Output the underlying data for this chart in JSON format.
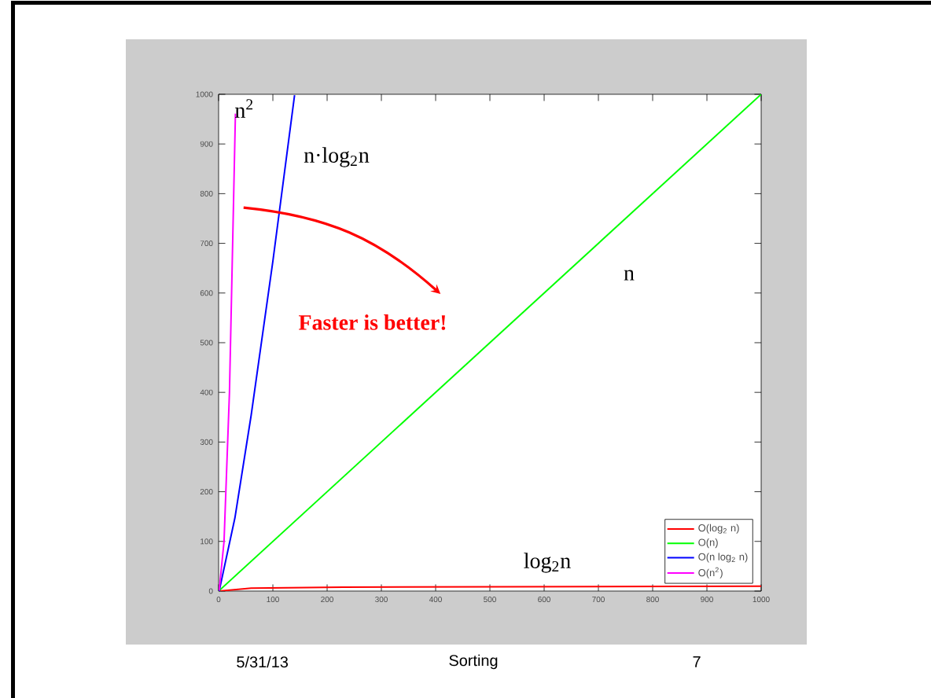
{
  "chart_data": {
    "type": "line",
    "xlim": [
      0,
      1000
    ],
    "ylim": [
      0,
      1000
    ],
    "xticks": [
      0,
      100,
      200,
      300,
      400,
      500,
      600,
      700,
      800,
      900,
      1000
    ],
    "yticks": [
      0,
      100,
      200,
      300,
      400,
      500,
      600,
      700,
      800,
      900,
      1000
    ],
    "legend": "bottom right",
    "grid": false,
    "series": [
      {
        "name": "O(log$_{2}$ n)",
        "color": "#ff0000",
        "x": [
          1,
          60,
          230,
          1000
        ],
        "values": [
          0,
          6,
          8,
          10
        ]
      },
      {
        "name": "O(n)",
        "color": "#00ff00",
        "x": [
          0,
          1000
        ],
        "values": [
          0,
          1000
        ]
      },
      {
        "name": "O(n log$_{2}$ n)",
        "color": "#0000ff",
        "x": [
          1,
          30,
          60,
          100,
          140
        ],
        "values": [
          0,
          147,
          354,
          664,
          998
        ]
      },
      {
        "name": "O(n$^{2}$)",
        "color": "#ff00ff",
        "x": [
          1,
          10,
          20,
          31
        ],
        "values": [
          1,
          100,
          400,
          961
        ]
      }
    ],
    "annotations": [
      "n$^{2}$",
      "n·log$_{2}$n",
      "n",
      "log$_{2}$n",
      "**Faster is better!**",
      "5/31/13",
      "Sorting",
      "7"
    ]
  }
}
